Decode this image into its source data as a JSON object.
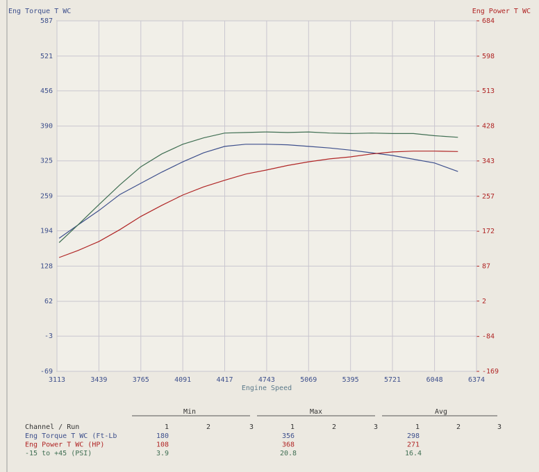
{
  "chart_data": {
    "type": "line",
    "ylabel": "Eng Torque T WC",
    "y2label": "Eng Power T WC",
    "xlabel": "Engine Speed",
    "xlim": [
      3113,
      6374
    ],
    "xticks": [
      3113,
      3439,
      3765,
      4091,
      4417,
      4743,
      5069,
      5395,
      5721,
      6048,
      6374
    ],
    "ylim": [
      -69,
      587
    ],
    "yticks": [
      -69,
      -3,
      62,
      128,
      194,
      259,
      325,
      390,
      456,
      521,
      587
    ],
    "y2lim": [
      -169,
      684
    ],
    "y2ticks": [
      -169,
      -84,
      2,
      87,
      172,
      257,
      343,
      428,
      513,
      598,
      684
    ],
    "grid": true,
    "x": [
      3130,
      3276,
      3439,
      3602,
      3765,
      3928,
      4091,
      4254,
      4417,
      4580,
      4743,
      4906,
      5069,
      5232,
      5395,
      5558,
      5721,
      5884,
      6048,
      6230
    ],
    "series": [
      {
        "color": "#3d4f8c",
        "values": [
          180,
          205,
          232,
          262,
          283,
          304,
          323,
          340,
          352,
          356,
          356,
          355,
          352,
          349,
          345,
          340,
          335,
          328,
          321,
          305
        ]
      },
      {
        "color": "#b02525",
        "axis": "y2",
        "values": [
          108,
          125,
          147,
          176,
          208,
          235,
          260,
          280,
          296,
          311,
          321,
          332,
          341,
          348,
          353,
          360,
          365,
          367,
          367,
          366
        ]
      },
      {
        "color": "#3f6e52",
        "values": [
          172,
          205,
          243,
          280,
          314,
          338,
          356,
          368,
          377,
          378,
          379,
          378,
          379,
          377,
          376,
          377,
          376,
          376,
          372,
          369
        ]
      }
    ]
  },
  "table": {
    "groups": [
      "Min",
      "Max",
      "Avg"
    ],
    "runs": [
      "1",
      "2",
      "3"
    ],
    "header": "Channel / Run",
    "rows": [
      [
        "Eng Torque T WC (Ft-Lb",
        "180",
        "356",
        "298"
      ],
      [
        "Eng Power T WC (HP)",
        "108",
        "368",
        "271"
      ],
      [
        "-15 to +45 (PSI)",
        "3.9",
        "20.8",
        "16.4"
      ]
    ]
  }
}
